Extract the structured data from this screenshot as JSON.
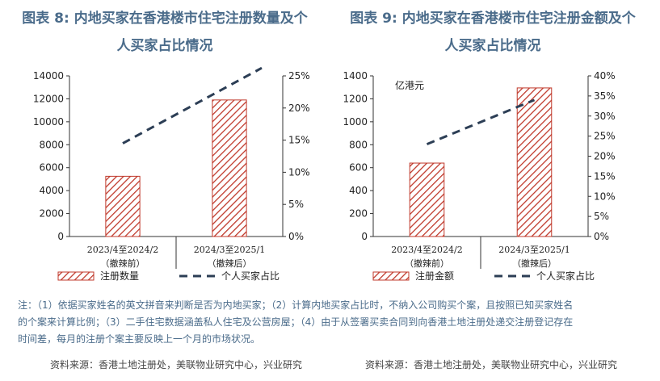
{
  "charts": [
    {
      "figure_title_line1": "图表 8:  内地买家在香港楼市住宅注册数量及个",
      "figure_title_line2": "人买家占比情况",
      "source": "资料来源：香港土地注册处，美联物业研究中心，兴业研究",
      "colors": {
        "bar": "#c0392b",
        "line": "#2c3e55"
      },
      "chart_data": {
        "type": "bar",
        "categories": [
          {
            "line1": "2023/4至2024/2",
            "line2": "（撤辣前）"
          },
          {
            "line1": "2024/3至2025/1",
            "line2": "（撤辣后）"
          }
        ],
        "series": [
          {
            "name": "注册数量",
            "type": "bar",
            "axis": "left",
            "values": [
              5250,
              11900
            ]
          },
          {
            "name": "个人买家占比",
            "type": "line",
            "axis": "right",
            "values": [
              14.5,
              23.5
            ]
          }
        ],
        "y_left": {
          "min": 0,
          "max": 14000,
          "step": 2000,
          "unit": ""
        },
        "y_right": {
          "min": 0,
          "max": 25,
          "step": 5,
          "suffix": "%"
        },
        "grid": false,
        "legend": "bottom"
      }
    },
    {
      "figure_title_line1": "图表 9:  内地买家在香港楼市住宅注册金额及个",
      "figure_title_line2": "人买家占比情况",
      "source": "资料来源：香港土地注册处，美联物业研究中心，兴业研究",
      "colors": {
        "bar": "#c0392b",
        "line": "#2c3e55"
      },
      "chart_data": {
        "type": "bar",
        "categories": [
          {
            "line1": "2023/4至2024/2",
            "line2": "（撤辣前）"
          },
          {
            "line1": "2024/3至2025/1",
            "line2": "（撤辣后）"
          }
        ],
        "series": [
          {
            "name": "注册金额",
            "type": "bar",
            "axis": "left",
            "values": [
              640,
              1295
            ]
          },
          {
            "name": "个人买家占比",
            "type": "line",
            "axis": "right",
            "values": [
              23.0,
              34.0
            ]
          }
        ],
        "y_left": {
          "min": 0,
          "max": 1400,
          "step": 200,
          "unit": "亿港元"
        },
        "y_right": {
          "min": 0,
          "max": 40,
          "step": 5,
          "suffix": "%"
        },
        "grid": false,
        "legend": "bottom"
      }
    }
  ],
  "notes": [
    "注：（1）依据买家姓名的英文拼音来判断是否为内地买家；（2）计算内地买家占比时，不纳入公司购买个案，且按照已知买家姓名",
    "的个案来计算比例；（3）二手住宅数据涵盖私人住宅及公营房屋；（4）由于从签署买卖合同到向香港土地注册处递交注册登记存在",
    "时间差，每月的注册个案主要反映上一个月的市场状况。"
  ]
}
